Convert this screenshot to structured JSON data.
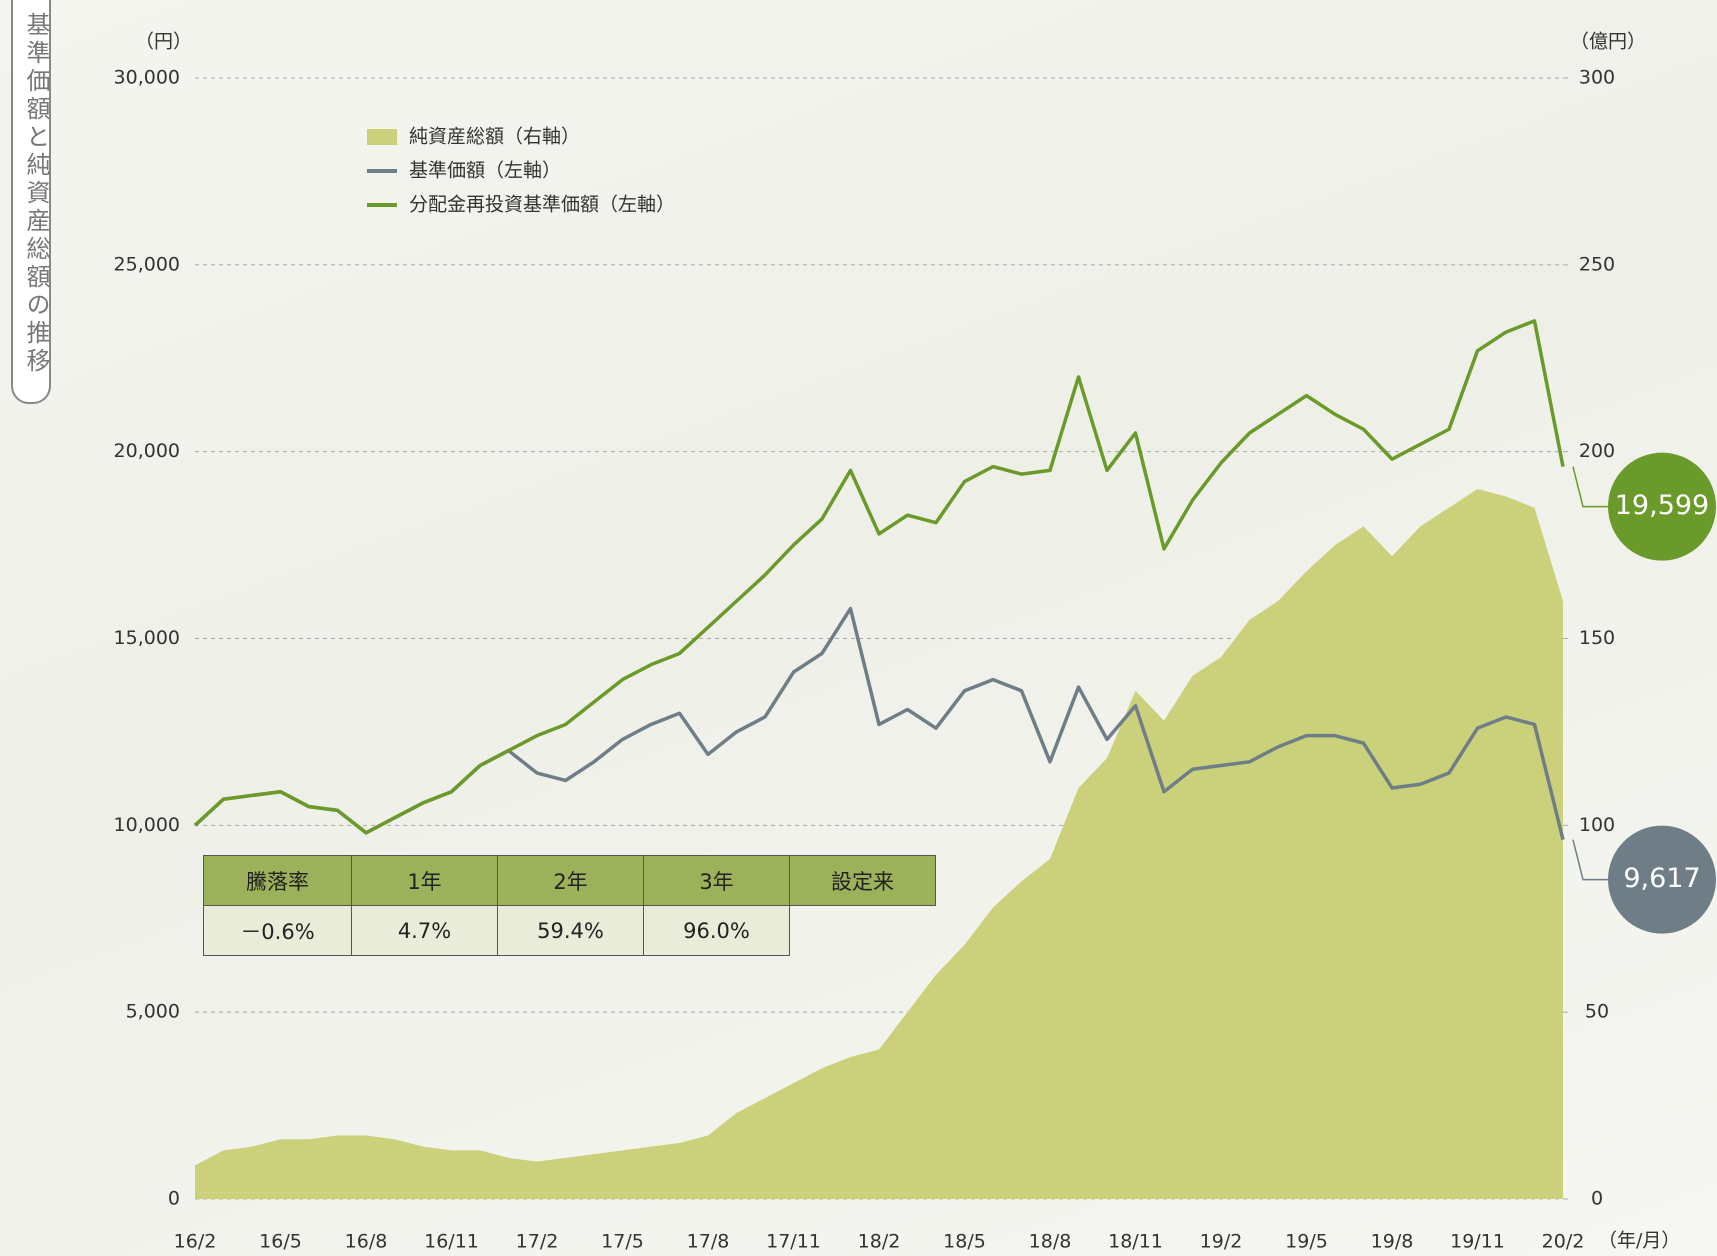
{
  "chart_data": {
    "type": "line",
    "title": "基準価額と純資産総額の推移",
    "y_unit": "（円）",
    "y2_unit": "（億円）",
    "x_unit": "（年/月）",
    "categories": [
      "16/2",
      null,
      null,
      "16/5",
      null,
      null,
      "16/8",
      null,
      null,
      "16/11",
      null,
      null,
      "17/2",
      null,
      null,
      "17/5",
      null,
      null,
      "17/8",
      null,
      null,
      "17/11",
      null,
      null,
      "18/2",
      null,
      null,
      "18/5",
      null,
      null,
      "18/8",
      null,
      null,
      "18/11",
      null,
      null,
      "19/2",
      null,
      null,
      "19/5",
      null,
      null,
      "19/8",
      null,
      null,
      "19/11",
      null,
      null,
      "20/2"
    ],
    "ylim": [
      0,
      30000
    ],
    "yticks": [
      0,
      {
        "value": 5000,
        "label": "5,000"
      },
      {
        "value": 10000,
        "label": "10,000"
      },
      {
        "value": 15000,
        "label": "15,000"
      },
      {
        "value": 20000,
        "label": "20,000"
      },
      {
        "value": 25000,
        "label": "25,000"
      },
      {
        "value": 30000,
        "label": "30,000"
      }
    ],
    "y2lim": [
      0,
      300
    ],
    "y2ticks": [
      0,
      50,
      100,
      150,
      200,
      250,
      300
    ],
    "grid": true,
    "series": [
      {
        "name": "純資産総額（右軸）",
        "style": "area",
        "axis": "y2",
        "color": "#cbd07a",
        "values": [
          9,
          13,
          14,
          16,
          16,
          17,
          17,
          16,
          14,
          13,
          13,
          11,
          10,
          11,
          12,
          13,
          14,
          15,
          17,
          23,
          27,
          31,
          35,
          38,
          40,
          50,
          60,
          68,
          78,
          85,
          91,
          110,
          118,
          136,
          128,
          140,
          145,
          155,
          160,
          168,
          175,
          180,
          172,
          180,
          185,
          190,
          188,
          185,
          160
        ]
      },
      {
        "name": "基準価額（左軸）",
        "style": "line",
        "color": "#6f7e86",
        "end_label": "9,617",
        "values": [
          10000,
          10700,
          10800,
          10900,
          10500,
          10400,
          9800,
          10200,
          10600,
          10900,
          11600,
          12000,
          11400,
          11200,
          11700,
          12300,
          12700,
          13000,
          11900,
          12500,
          12900,
          14100,
          14600,
          15800,
          12700,
          13100,
          12600,
          13600,
          13900,
          13600,
          11700,
          13700,
          12300,
          13200,
          10900,
          11500,
          11600,
          11700,
          12100,
          12400,
          12400,
          12200,
          11000,
          11100,
          11400,
          12600,
          12900,
          12700,
          9617
        ]
      },
      {
        "name": "分配金再投資基準価額（左軸）",
        "style": "line",
        "color": "#6a9a2a",
        "end_label": "19,599",
        "values": [
          10000,
          10700,
          10800,
          10900,
          10500,
          10400,
          9800,
          10200,
          10600,
          10900,
          11600,
          12000,
          12400,
          12700,
          13300,
          13900,
          14300,
          14600,
          15300,
          16000,
          16700,
          17500,
          18200,
          19500,
          17800,
          18300,
          18100,
          19200,
          19600,
          19400,
          19500,
          22000,
          19500,
          20500,
          17400,
          18700,
          19700,
          20500,
          21000,
          21500,
          21000,
          20600,
          19800,
          20200,
          20600,
          22700,
          23200,
          23500,
          19599
        ]
      }
    ],
    "performance_table": {
      "row_header": "騰落率",
      "columns": [
        "1年",
        "2年",
        "3年",
        "設定来"
      ],
      "values": [
        "－0.6%",
        "4.7%",
        "59.4%",
        "96.0%"
      ]
    }
  }
}
